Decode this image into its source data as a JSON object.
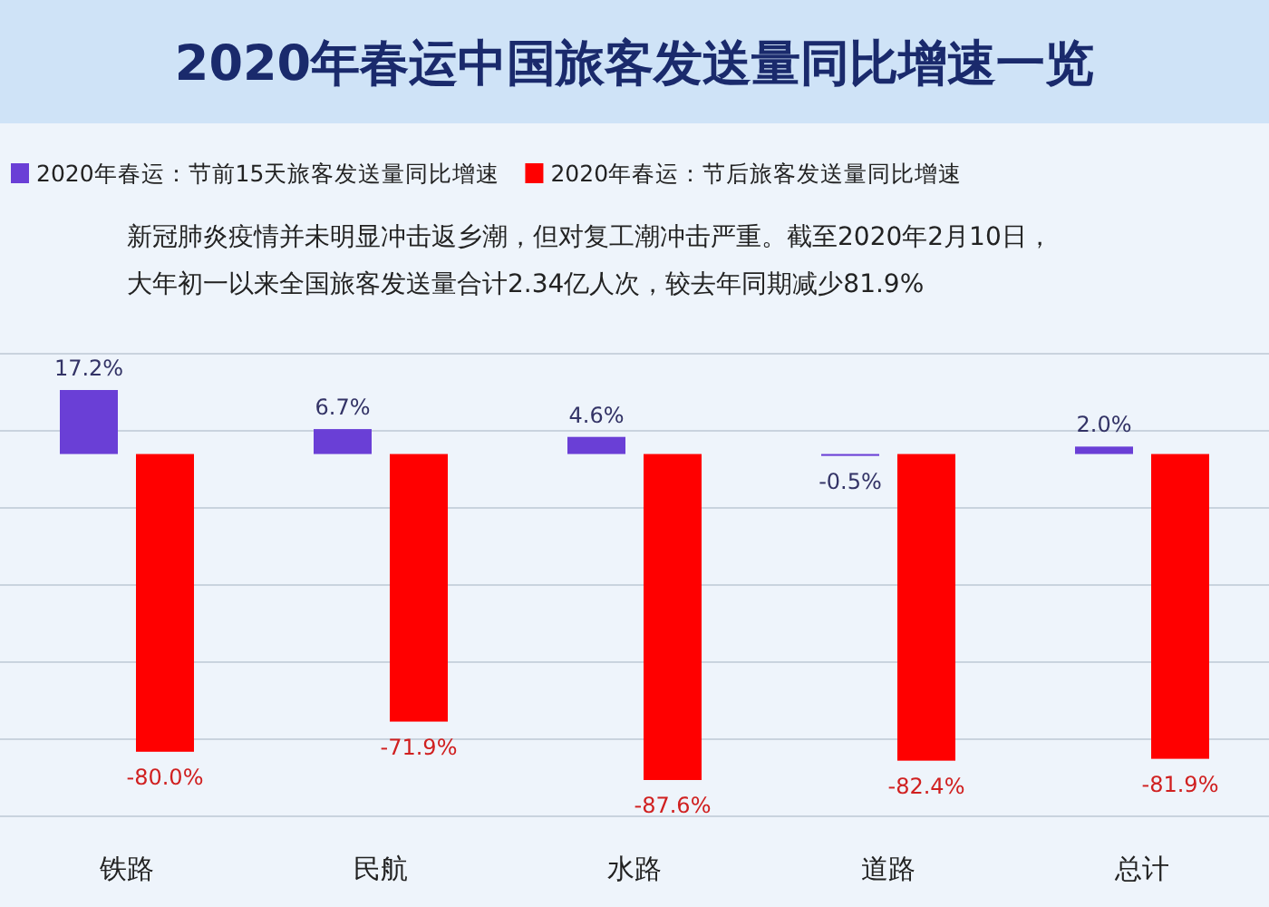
{
  "chart_data": {
    "type": "bar",
    "title": "2020年春运中国旅客发送量同比增速一览",
    "annotations": [
      "新冠肺炎疫情并未明显冲击返乡潮，但对复工潮冲击严重。截至2020年2月10日，",
      "大年初一以来全国旅客发送量合计2.34亿人次，较去年同期减少81.9%"
    ],
    "categories": [
      "铁路",
      "民航",
      "水路",
      "道路",
      "总计"
    ],
    "series": [
      {
        "name": "2020年春运：节前15天旅客发送量同比增速",
        "color": "#6a3fd6",
        "values": [
          17.2,
          6.7,
          4.6,
          -0.5,
          2.0
        ],
        "value_labels": [
          "17.2%",
          "6.7%",
          "4.6%",
          "-0.5%",
          "2.0%"
        ]
      },
      {
        "name": "2020年春运：节后旅客发送量同比增速",
        "color": "#ff0000",
        "values": [
          -80.0,
          -71.9,
          -87.6,
          -82.4,
          -81.9
        ],
        "value_labels": [
          "-80.0%",
          "-71.9%",
          "-87.6%",
          "-82.4%",
          "-81.9%"
        ]
      }
    ],
    "grid": true,
    "legend": "top"
  }
}
